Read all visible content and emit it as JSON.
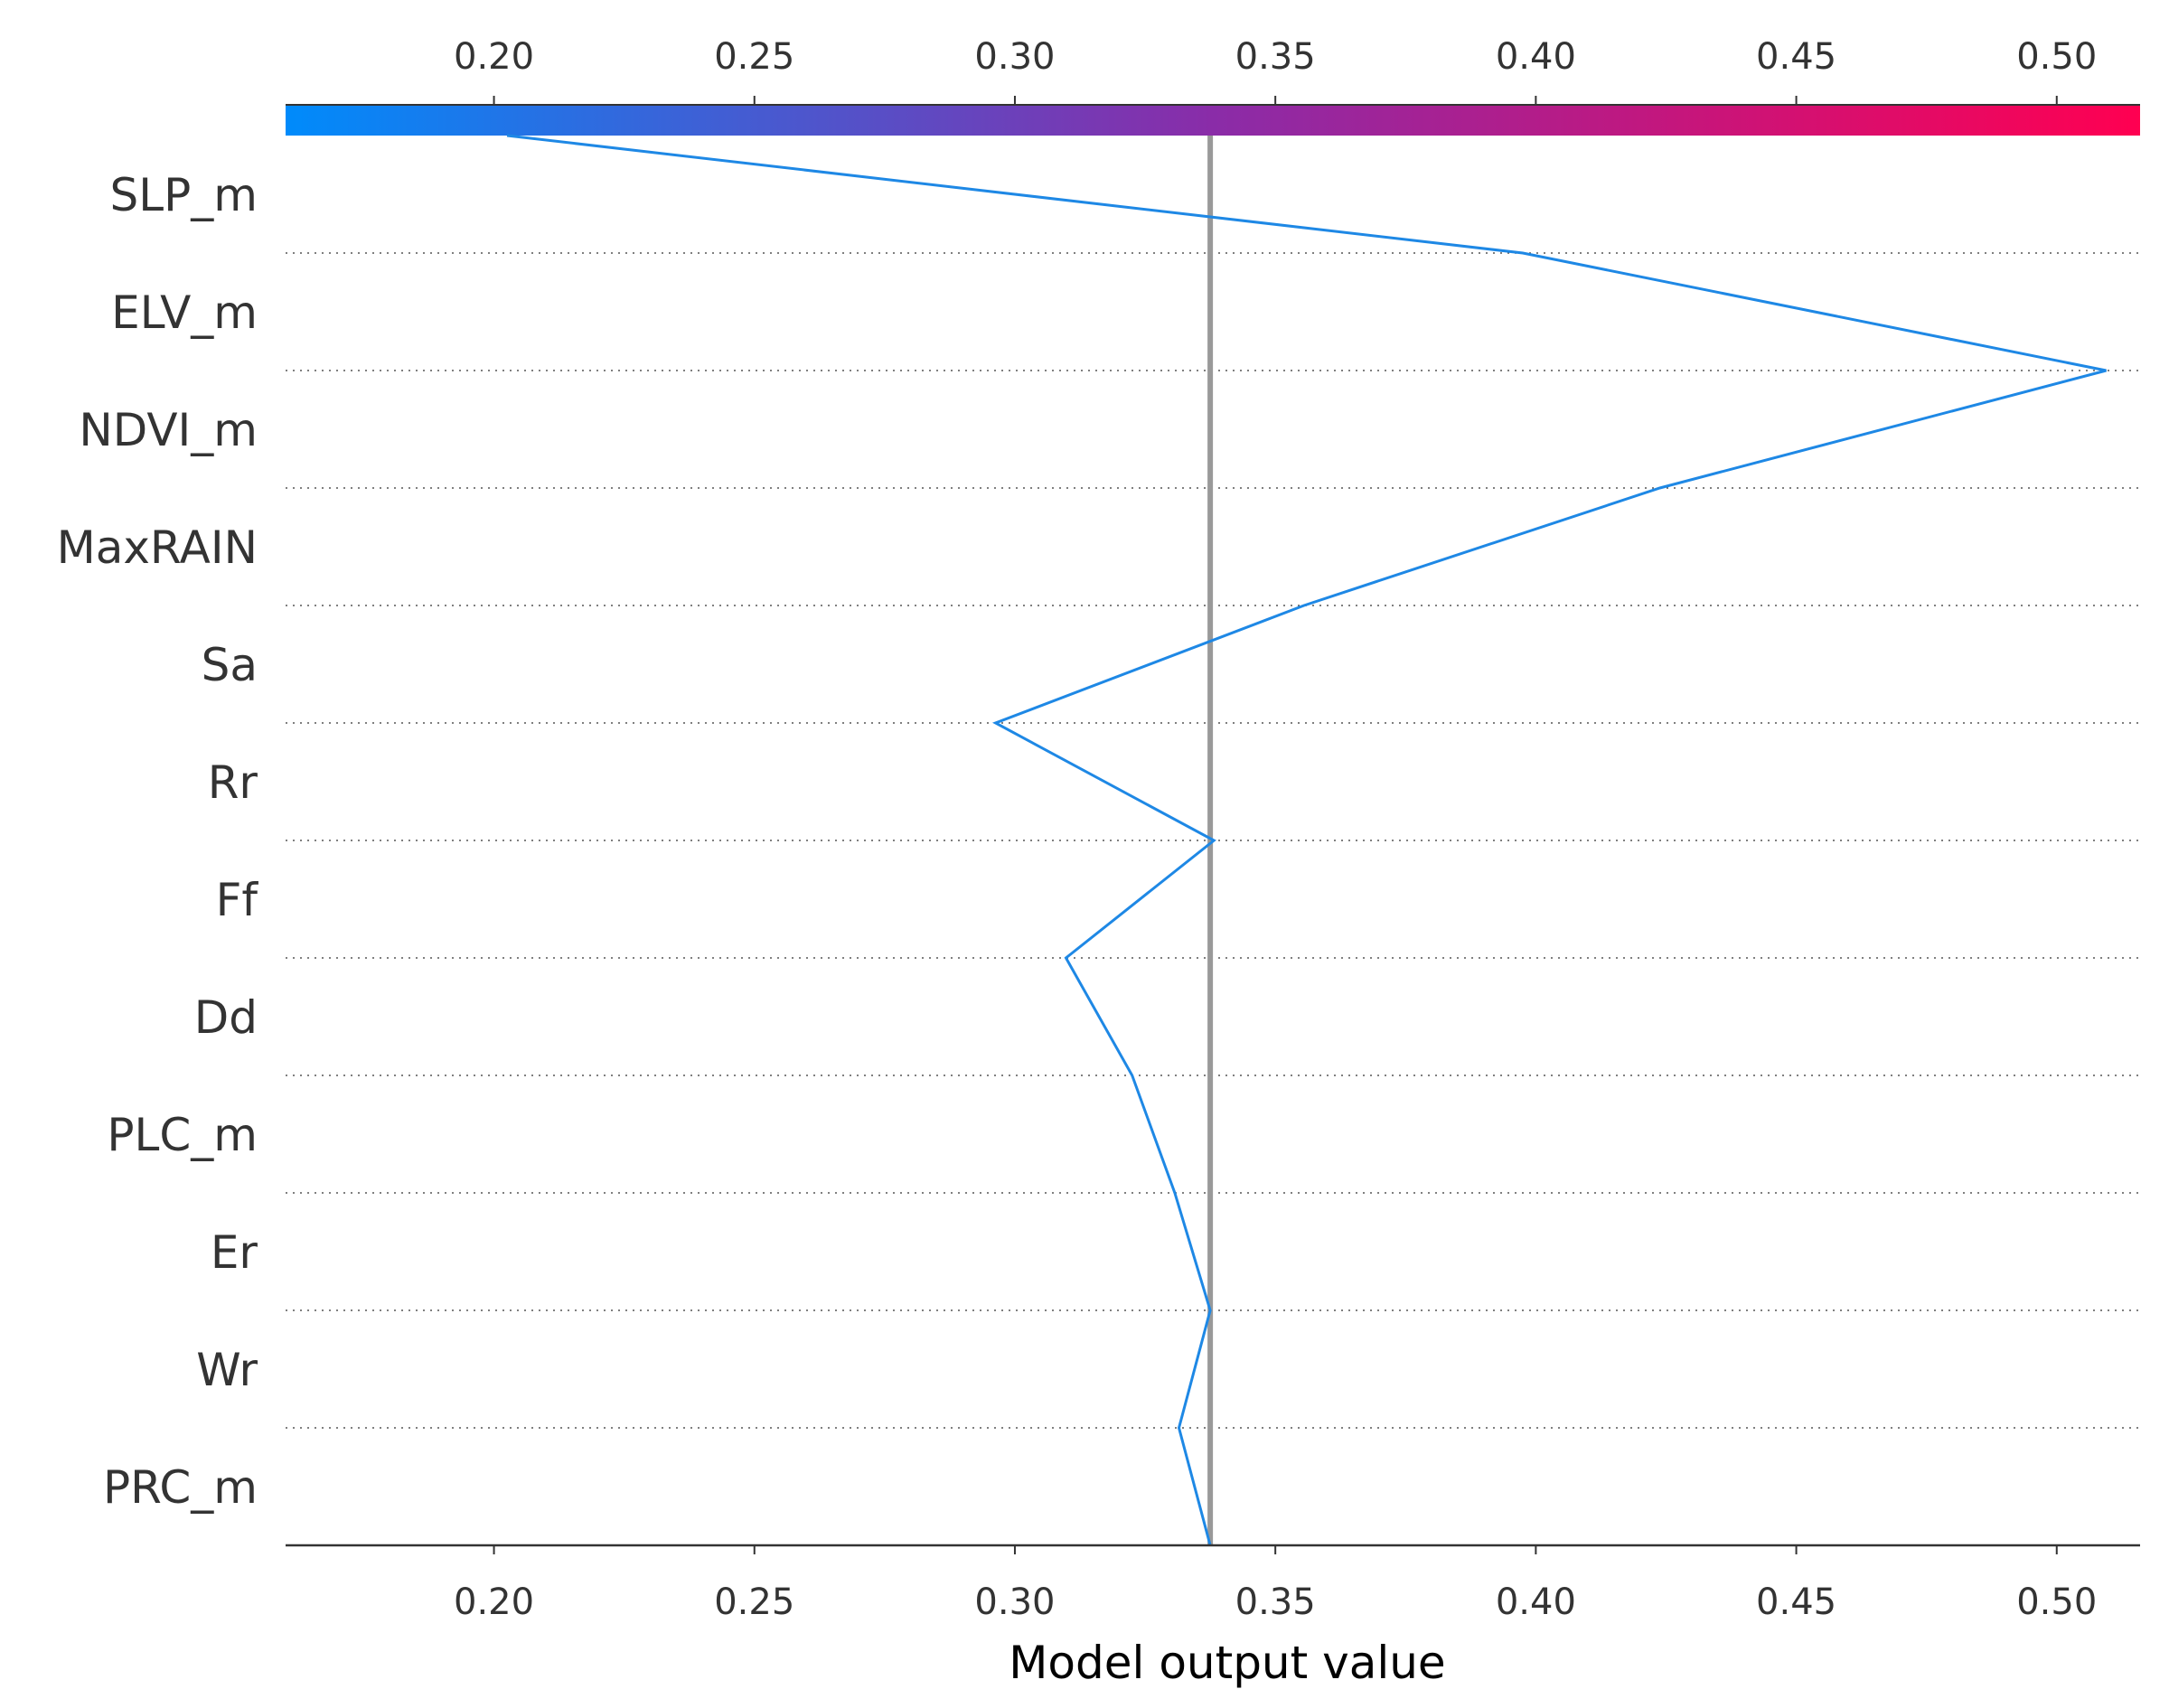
{
  "chart_data": {
    "type": "line",
    "subtype": "shap-decision-plot",
    "xlabel": "Model output value",
    "xlim": [
      0.16,
      0.516
    ],
    "x_ticks": [
      0.2,
      0.25,
      0.3,
      0.35,
      0.4,
      0.45,
      0.5
    ],
    "x_tick_labels": [
      "0.20",
      "0.25",
      "0.30",
      "0.35",
      "0.40",
      "0.45",
      "0.50"
    ],
    "base_value": 0.3375,
    "features": [
      "SLP_m",
      "ELV_m",
      "NDVI_m",
      "MaxRAIN",
      "Sa",
      "Rr",
      "Ff",
      "Dd",
      "PLC_m",
      "Er",
      "Wr",
      "PRC_m"
    ],
    "path": [
      0.2025,
      0.3975,
      0.5095,
      0.4238,
      0.3555,
      0.2963,
      0.3382,
      0.3098,
      0.3225,
      0.3307,
      0.3375,
      0.3315,
      0.3375
    ],
    "colorbar": {
      "from": "#008bfb",
      "mid": "#8a2ca8",
      "to": "#ff0051"
    },
    "line_color": "#1e88e5",
    "base_line_color": "#999999",
    "grid": "dotted horizontal"
  }
}
